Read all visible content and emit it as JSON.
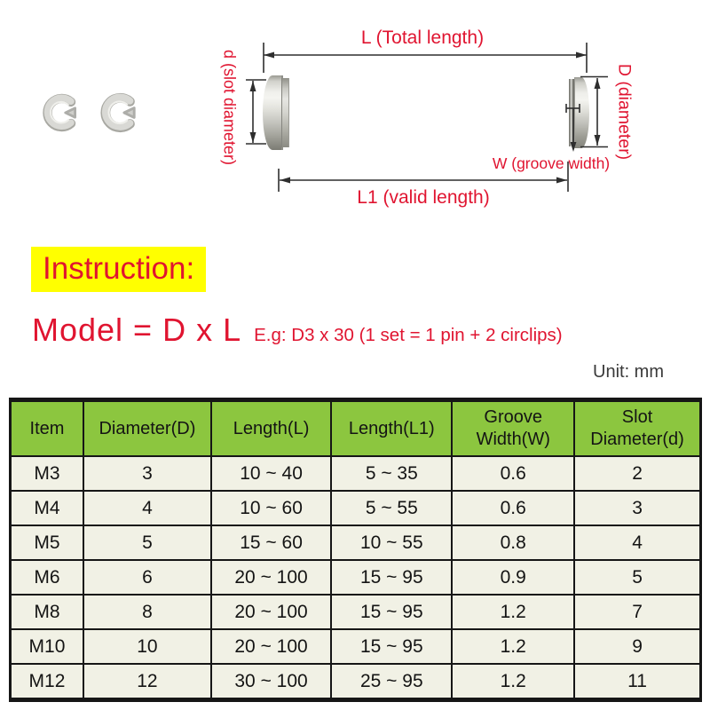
{
  "diagram": {
    "labels": {
      "total_length": "L (Total length)",
      "slot_diameter": "d (slot diameter)",
      "diameter": "D (diameter)",
      "groove_width": "W (groove width)",
      "valid_length": "L1 (valid length)"
    },
    "icons": [
      "circlip-icon",
      "circlip-icon",
      "pin-photo"
    ]
  },
  "instruction": {
    "heading": "Instruction:",
    "model_formula": "Model = D x L",
    "example": "E.g: D3 x 30 (1 set = 1 pin + 2 circlips)"
  },
  "table": {
    "unit_note": "Unit: mm",
    "columns": [
      "Item",
      "Diameter(D)",
      "Length(L)",
      "Length(L1)",
      "Groove\nWidth(W)",
      "Slot\nDiameter(d)"
    ],
    "rows": [
      [
        "M3",
        "3",
        "10 ~ 40",
        "5 ~ 35",
        "0.6",
        "2"
      ],
      [
        "M4",
        "4",
        "10 ~ 60",
        "5 ~ 55",
        "0.6",
        "3"
      ],
      [
        "M5",
        "5",
        "15 ~ 60",
        "10 ~ 55",
        "0.8",
        "4"
      ],
      [
        "M6",
        "6",
        "20 ~ 100",
        "15 ~ 95",
        "0.9",
        "5"
      ],
      [
        "M8",
        "8",
        "20 ~ 100",
        "15 ~ 95",
        "1.2",
        "7"
      ],
      [
        "M10",
        "10",
        "20 ~ 100",
        "15 ~ 95",
        "1.2",
        "9"
      ],
      [
        "M12",
        "12",
        "30 ~ 100",
        "25 ~ 95",
        "1.2",
        "11"
      ]
    ]
  },
  "colors": {
    "accent_red": "#e01430",
    "highlight_yellow": "#ffff00",
    "table_header_green": "#8cc63f",
    "table_row_cream": "#f1f1e5"
  }
}
